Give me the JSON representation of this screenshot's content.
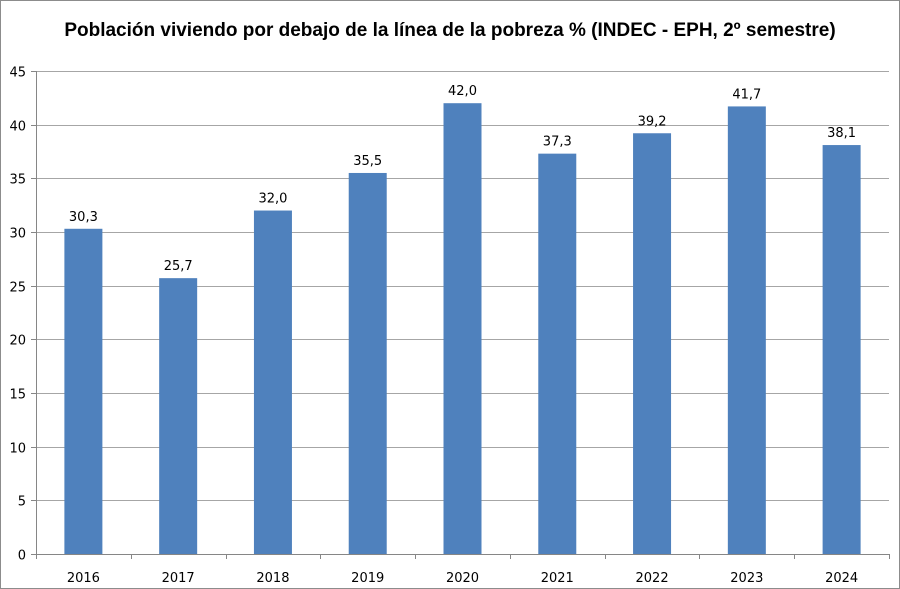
{
  "chart_data": {
    "type": "bar",
    "title": "Población viviendo por debajo de la línea de la pobreza % (INDEC - EPH, 2º semestre)",
    "categories": [
      "2016",
      "2017",
      "2018",
      "2019",
      "2020",
      "2021",
      "2022",
      "2023",
      "2024"
    ],
    "values": [
      30.3,
      25.7,
      32.0,
      35.5,
      42.0,
      37.3,
      39.2,
      41.7,
      38.1
    ],
    "value_labels": [
      "30,3",
      "25,7",
      "32,0",
      "35,5",
      "42,0",
      "37,3",
      "39,2",
      "41,7",
      "38,1"
    ],
    "ylim": [
      0,
      45
    ],
    "yticks": [
      0,
      5,
      10,
      15,
      20,
      25,
      30,
      35,
      40,
      45
    ],
    "grid": true,
    "legend": "none",
    "bar_color": "#4f81bd",
    "xlabel": "",
    "ylabel": ""
  }
}
